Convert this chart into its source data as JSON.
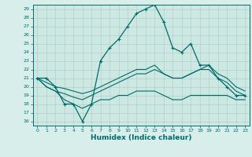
{
  "xlabel": "Humidex (Indice chaleur)",
  "xlim": [
    -0.5,
    23.5
  ],
  "ylim": [
    15.5,
    29.5
  ],
  "yticks": [
    16,
    17,
    18,
    19,
    20,
    21,
    22,
    23,
    24,
    25,
    26,
    27,
    28,
    29
  ],
  "xticks": [
    0,
    1,
    2,
    3,
    4,
    5,
    6,
    7,
    8,
    9,
    10,
    11,
    12,
    13,
    14,
    15,
    16,
    17,
    18,
    19,
    20,
    21,
    22,
    23
  ],
  "bg_color": "#d8eeea",
  "plot_bg_color": "#cce8e2",
  "line_color": "#006b6b",
  "grid_color": "#b8ccc8",
  "line1_y": [
    21,
    21,
    20,
    18,
    18,
    16,
    18,
    23,
    24.5,
    25.5,
    27,
    28.5,
    29,
    29.5,
    27.5,
    24.5,
    24,
    25,
    22.5,
    22.5,
    21,
    20,
    19,
    19
  ],
  "line2_y": [
    21,
    20.5,
    20,
    19.8,
    19.5,
    19.2,
    19.5,
    20,
    20.5,
    21,
    21.5,
    22,
    22,
    22.5,
    21.5,
    21,
    21,
    21.5,
    22,
    22.5,
    21.5,
    21,
    20,
    19.5
  ],
  "line3_y": [
    21,
    20,
    19.5,
    19.2,
    18.8,
    18.5,
    19,
    19.5,
    20,
    20.5,
    21,
    21.5,
    21.5,
    22,
    21.5,
    21,
    21,
    21.5,
    22,
    22,
    21,
    20.5,
    19.5,
    19
  ],
  "line4_y": [
    21,
    20,
    19.5,
    18.5,
    18,
    17.5,
    18,
    18.5,
    18.5,
    19,
    19,
    19.5,
    19.5,
    19.5,
    19,
    18.5,
    18.5,
    19,
    19,
    19,
    19,
    19,
    18.5,
    18.5
  ]
}
